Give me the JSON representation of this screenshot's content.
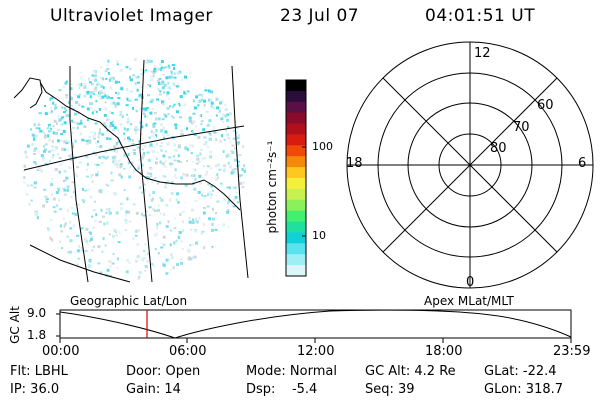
{
  "header": {
    "instrument": "Ultraviolet Imager",
    "date": "23 Jul 07",
    "time": "04:01:51 UT"
  },
  "colorbar": {
    "unit_label": "photon cm⁻²s⁻¹",
    "ticks": [
      "100",
      "10"
    ],
    "colors": [
      "#000000",
      "#2a0d3a",
      "#5a0f46",
      "#8a0c2a",
      "#b00f1c",
      "#d81c10",
      "#f04a08",
      "#f58a0a",
      "#ffc820",
      "#f5f03a",
      "#c8f050",
      "#8cf05a",
      "#40f06e",
      "#20e0a0",
      "#10d0d8",
      "#5ae2ee",
      "#9eeef6",
      "#dcf6fa"
    ]
  },
  "left_panel": {
    "caption": "Geographic Lat/Lon"
  },
  "right_panel": {
    "caption": "Apex MLat/MLT",
    "mlt_labels": [
      "12",
      "18",
      "6",
      "0"
    ],
    "lat_labels": [
      "60",
      "70",
      "80"
    ]
  },
  "altitude_plot": {
    "ylabel": "GC Alt",
    "yticks": [
      "9.0",
      "1.8"
    ],
    "xticks": [
      "00:00",
      "06:00",
      "12:00",
      "18:00",
      "23:59"
    ],
    "current_time_marker": "04:01:51"
  },
  "footer": {
    "flt": "Flt: LBHL",
    "ip": "IP: 36.0",
    "door": "Door: Open",
    "gain": "Gain: 14",
    "mode": "Mode: Normal",
    "dsp": "Dsp:    -5.4",
    "gc_alt": "GC Alt: 4.2 Re",
    "seq": "Seq: 39",
    "glat": "GLat: -22.4",
    "glon": "GLon: 318.7"
  }
}
